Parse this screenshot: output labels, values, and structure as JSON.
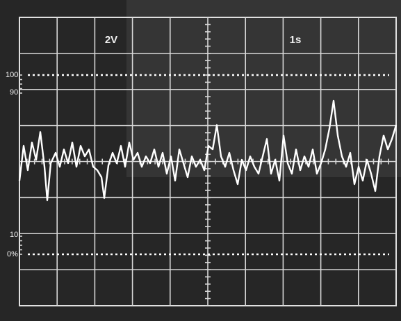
{
  "labels": {
    "volts": "2V",
    "time": "1s",
    "top": "100",
    "upper": "90",
    "lower": "10",
    "bottom": "0%"
  }
}
